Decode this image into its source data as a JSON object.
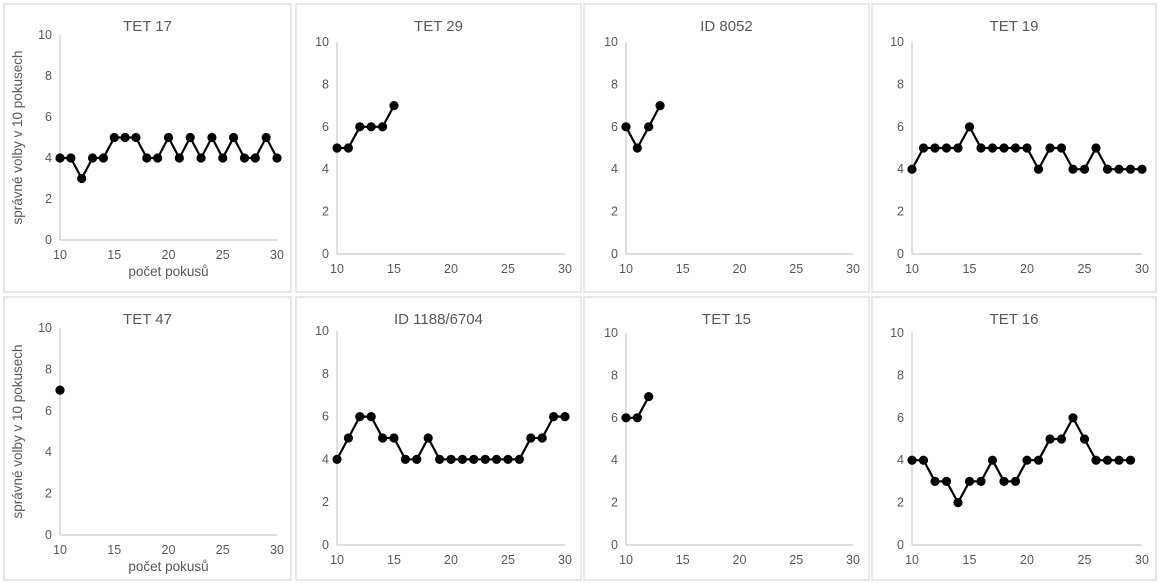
{
  "chart_data": [
    {
      "type": "line",
      "title": "TET 17",
      "xlabel": "počet pokusů",
      "ylabel": "správné volby v 10 pokusech",
      "xlim": [
        10,
        30
      ],
      "ylim": [
        0,
        10
      ],
      "xticks": [
        "10",
        "15",
        "20",
        "25",
        "30"
      ],
      "yticks": [
        "0",
        "2",
        "4",
        "6",
        "8",
        "10"
      ],
      "x": [
        10,
        11,
        12,
        13,
        14,
        15,
        16,
        17,
        18,
        19,
        20,
        21,
        22,
        23,
        24,
        25,
        26,
        27,
        28,
        29,
        30
      ],
      "values": [
        4,
        4,
        3,
        4,
        4,
        5,
        5,
        5,
        4,
        4,
        5,
        4,
        5,
        4,
        5,
        4,
        5,
        4,
        4,
        5,
        4
      ]
    },
    {
      "type": "line",
      "title": "TET 29",
      "xlabel": "",
      "ylabel": "",
      "xlim": [
        10,
        30
      ],
      "ylim": [
        0,
        10
      ],
      "xticks": [
        "10",
        "15",
        "20",
        "25",
        "30"
      ],
      "yticks": [
        "0",
        "2",
        "4",
        "6",
        "8",
        "10"
      ],
      "x": [
        10,
        11,
        12,
        13,
        14,
        15
      ],
      "values": [
        5,
        5,
        6,
        6,
        6,
        7
      ]
    },
    {
      "type": "line",
      "title": "ID 8052",
      "xlabel": "",
      "ylabel": "",
      "xlim": [
        10,
        30
      ],
      "ylim": [
        0,
        10
      ],
      "xticks": [
        "10",
        "15",
        "20",
        "25",
        "30"
      ],
      "yticks": [
        "0",
        "2",
        "4",
        "6",
        "8",
        "10"
      ],
      "x": [
        10,
        11,
        12,
        13
      ],
      "values": [
        6,
        5,
        6,
        7
      ]
    },
    {
      "type": "line",
      "title": "TET 19",
      "xlabel": "",
      "ylabel": "",
      "xlim": [
        10,
        30
      ],
      "ylim": [
        0,
        10
      ],
      "xticks": [
        "10",
        "15",
        "20",
        "25",
        "30"
      ],
      "yticks": [
        "0",
        "2",
        "4",
        "6",
        "8",
        "10"
      ],
      "x": [
        10,
        11,
        12,
        13,
        14,
        15,
        16,
        17,
        18,
        19,
        20,
        21,
        22,
        23,
        24,
        25,
        26,
        27,
        28,
        29,
        30
      ],
      "values": [
        4,
        5,
        5,
        5,
        5,
        6,
        5,
        5,
        5,
        5,
        5,
        4,
        5,
        5,
        4,
        4,
        5,
        4,
        4,
        4,
        4
      ]
    },
    {
      "type": "line",
      "title": "TET 47",
      "xlabel": "počet pokusů",
      "ylabel": "správné volby v 10 pokusech",
      "xlim": [
        10,
        30
      ],
      "ylim": [
        0,
        10
      ],
      "xticks": [
        "10",
        "15",
        "20",
        "25",
        "30"
      ],
      "yticks": [
        "0",
        "2",
        "4",
        "6",
        "8",
        "10"
      ],
      "x": [
        10
      ],
      "values": [
        7
      ]
    },
    {
      "type": "line",
      "title": "ID 1188/6704",
      "xlabel": "",
      "ylabel": "",
      "xlim": [
        10,
        30
      ],
      "ylim": [
        0,
        10
      ],
      "xticks": [
        "10",
        "15",
        "20",
        "25",
        "30"
      ],
      "yticks": [
        "0",
        "2",
        "4",
        "6",
        "8",
        "10"
      ],
      "x": [
        10,
        11,
        12,
        13,
        14,
        15,
        16,
        17,
        18,
        19,
        20,
        21,
        22,
        23,
        24,
        25,
        26,
        27,
        28,
        29,
        30
      ],
      "values": [
        4,
        5,
        6,
        6,
        5,
        5,
        4,
        4,
        5,
        4,
        4,
        4,
        4,
        4,
        4,
        4,
        4,
        5,
        5,
        6,
        6
      ]
    },
    {
      "type": "line",
      "title": "TET 15",
      "xlabel": "",
      "ylabel": "",
      "xlim": [
        10,
        30
      ],
      "ylim": [
        0,
        10
      ],
      "xticks": [
        "10",
        "15",
        "20",
        "25",
        "30"
      ],
      "yticks": [
        "0",
        "2",
        "4",
        "6",
        "8",
        "10"
      ],
      "x": [
        10,
        11,
        12
      ],
      "values": [
        6,
        6,
        7
      ]
    },
    {
      "type": "line",
      "title": "TET 16",
      "xlabel": "",
      "ylabel": "",
      "xlim": [
        10,
        30
      ],
      "ylim": [
        0,
        10
      ],
      "xticks": [
        "10",
        "15",
        "20",
        "25",
        "30"
      ],
      "yticks": [
        "0",
        "2",
        "4",
        "6",
        "8",
        "10"
      ],
      "x": [
        10,
        11,
        12,
        13,
        14,
        15,
        16,
        17,
        18,
        19,
        20,
        21,
        22,
        23,
        24,
        25,
        26,
        27,
        28,
        29
      ],
      "values": [
        4,
        4,
        3,
        3,
        2,
        3,
        3,
        4,
        3,
        3,
        4,
        4,
        5,
        5,
        6,
        5,
        4,
        4,
        4,
        4
      ]
    }
  ]
}
